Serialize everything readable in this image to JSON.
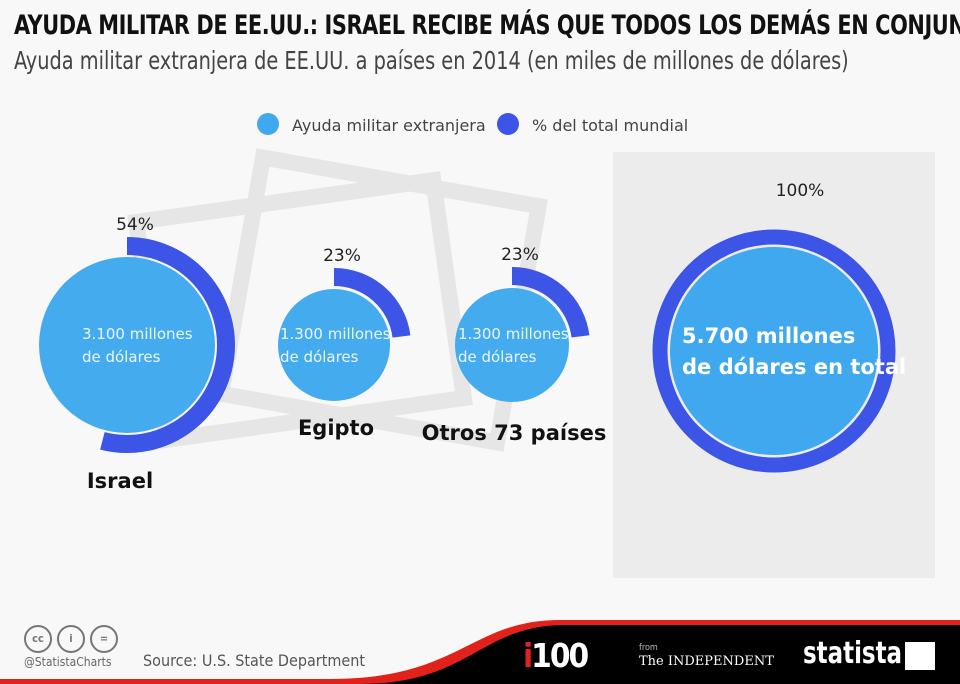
{
  "title": "AYUDA MILITAR DE EE.UU.: ISRAEL RECIBE MÁS QUE TODOS LOS DEMÁS EN CONJUNTO",
  "subtitle": "Ayuda militar extranjera de EE.UU. a países en 2014 (en miles de millones de dólares)",
  "chart_data": {
    "type": "bubble-with-arc",
    "legend": [
      {
        "name": "Ayuda militar extranjera",
        "color": "#3fa8ee"
      },
      {
        "name": "% del total mundial",
        "color": "#3c55e6"
      }
    ],
    "legend_placement": "top",
    "items": [
      {
        "category": "Israel",
        "value": 3.1,
        "value_label": [
          "3.100 millones",
          "de dólares"
        ],
        "percent": 54,
        "percent_label": "54%"
      },
      {
        "category": "Egipto",
        "value": 1.3,
        "value_label": [
          "1.300 millones",
          "de dólares"
        ],
        "percent": 23,
        "percent_label": "23%"
      },
      {
        "category": "Otros 73 países",
        "value": 1.3,
        "value_label": [
          "1.300 millones",
          "de dólares"
        ],
        "percent": 23,
        "percent_label": "23%"
      }
    ],
    "total": {
      "value": 5.7,
      "value_label": [
        "5.700 millones",
        "de dólares en total"
      ],
      "percent": 100,
      "percent_label": "100%"
    }
  },
  "footer": {
    "handle": "@StatistaCharts",
    "source": "Source: U.S. State Department",
    "i100": "i100",
    "from": "from",
    "independent": "The INDEPENDENT",
    "statista": "statista"
  },
  "colors": {
    "bubble": "#3fa8ee",
    "arc": "#3c55e6",
    "panel": "#ececec",
    "red": "#e0221a"
  }
}
